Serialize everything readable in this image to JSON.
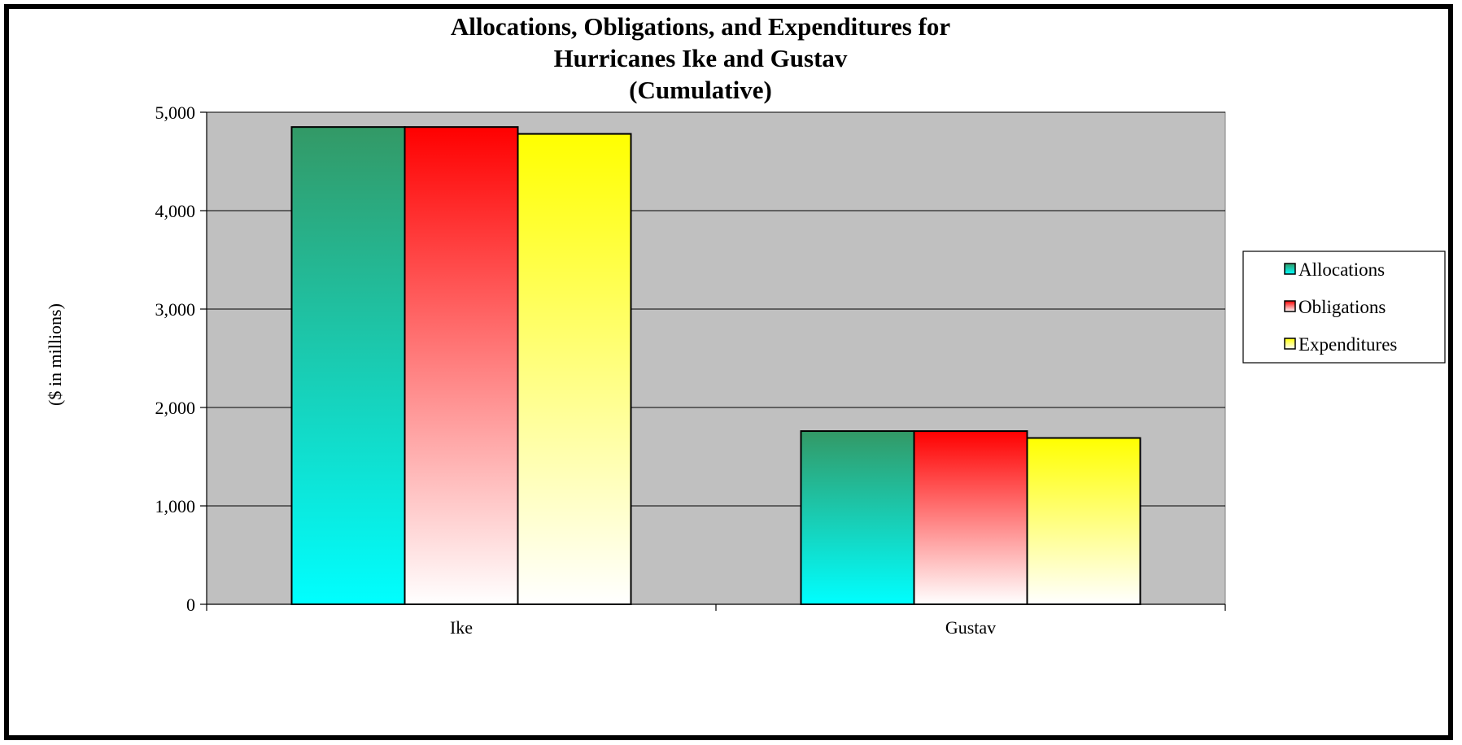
{
  "chart_data": {
    "type": "bar",
    "title": [
      "Allocations, Obligations, and Expenditures for",
      "Hurricanes Ike and Gustav",
      "(Cumulative)"
    ],
    "ylabel": "($ in millions)",
    "xlabel": "",
    "categories": [
      "Ike",
      "Gustav"
    ],
    "ylim": [
      0,
      5000
    ],
    "yticks": [
      0,
      1000,
      2000,
      3000,
      4000,
      5000
    ],
    "ytick_labels": [
      "0",
      "1,000",
      "2,000",
      "3,000",
      "4,000",
      "5,000"
    ],
    "grid": true,
    "legend_position": "right",
    "series": [
      {
        "name": "Allocations",
        "values": [
          4850,
          1760
        ],
        "color_top": "#339966",
        "color_bottom": "#00ffff"
      },
      {
        "name": "Obligations",
        "values": [
          4850,
          1760
        ],
        "color_top": "#ff0000",
        "color_bottom": "#ffffff"
      },
      {
        "name": "Expenditures",
        "values": [
          4780,
          1690
        ],
        "color_top": "#ffff00",
        "color_bottom": "#ffffff"
      }
    ],
    "plot_background": "#c0c0c0"
  }
}
